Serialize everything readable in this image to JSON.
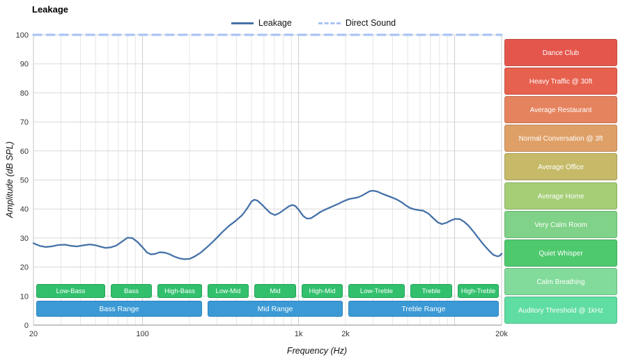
{
  "title": "Leakage",
  "legend": {
    "items": [
      {
        "label": "Leakage",
        "color": "#4572a7",
        "style": "solid"
      },
      {
        "label": "Direct Sound",
        "color": "#a9c4f5",
        "style": "dashed"
      }
    ]
  },
  "axes": {
    "x_title": "Frequency (Hz)",
    "y_title": "Amplitude (dB SPL)"
  },
  "bands": {
    "color": "#32c06d",
    "items": [
      {
        "label": "Low-Bass",
        "range_hz": [
          20,
          60
        ]
      },
      {
        "label": "Bass",
        "range_hz": [
          60,
          120
        ]
      },
      {
        "label": "High-Bass",
        "range_hz": [
          120,
          250
        ]
      },
      {
        "label": "Low-Mid",
        "range_hz": [
          250,
          500
        ]
      },
      {
        "label": "Mid",
        "range_hz": [
          500,
          1000
        ]
      },
      {
        "label": "High-Mid",
        "range_hz": [
          1000,
          2000
        ]
      },
      {
        "label": "Low-Treble",
        "range_hz": [
          2000,
          5000
        ]
      },
      {
        "label": "Treble",
        "range_hz": [
          5000,
          10000
        ]
      },
      {
        "label": "High-Treble",
        "range_hz": [
          10000,
          20000
        ]
      }
    ]
  },
  "ranges": {
    "color": "#3b9ad5",
    "items": [
      {
        "label": "Bass Range",
        "range_hz": [
          20,
          250
        ]
      },
      {
        "label": "Mid Range",
        "range_hz": [
          250,
          2000
        ]
      },
      {
        "label": "Treble Range",
        "range_hz": [
          2000,
          20000
        ]
      }
    ]
  },
  "noise_levels": {
    "items": [
      {
        "label": "Dance Club",
        "color": "#e4564c",
        "db_range": [
          90,
          100
        ]
      },
      {
        "label": "Heavy Traffic @ 30ft",
        "color": "#e7614f",
        "db_range": [
          80,
          90
        ]
      },
      {
        "label": "Average Restaurant",
        "color": "#e6835f",
        "db_range": [
          70,
          80
        ]
      },
      {
        "label": "Normal Conversation @ 3ft",
        "color": "#dfa068",
        "db_range": [
          60,
          70
        ]
      },
      {
        "label": "Average Office",
        "color": "#c6ba69",
        "db_range": [
          50,
          60
        ]
      },
      {
        "label": "Average Home",
        "color": "#a5ce77",
        "db_range": [
          40,
          50
        ]
      },
      {
        "label": "Very Calm Room",
        "color": "#7fd287",
        "db_range": [
          30,
          40
        ]
      },
      {
        "label": "Quiet Whisper",
        "color": "#4ec96e",
        "db_range": [
          20,
          30
        ]
      },
      {
        "label": "Calm Breathing",
        "color": "#82db9b",
        "db_range": [
          10,
          20
        ]
      },
      {
        "label": "Auditory Threshold @ 1kHz",
        "color": "#5fdda2",
        "db_range": [
          0,
          10
        ]
      }
    ]
  },
  "chart_data": {
    "type": "line",
    "title": "Leakage",
    "xlabel": "Frequency (Hz)",
    "ylabel": "Amplitude (dB SPL)",
    "xscale": "log",
    "xlim": [
      20,
      20000
    ],
    "ylim": [
      0,
      100
    ],
    "grid": true,
    "legend_position": "top",
    "yticks": [
      0,
      10,
      20,
      30,
      40,
      50,
      60,
      70,
      80,
      90,
      100
    ],
    "xticks": [
      {
        "value": 20,
        "label": "20"
      },
      {
        "value": 100,
        "label": "100"
      },
      {
        "value": 1000,
        "label": "1k"
      },
      {
        "value": 2000,
        "label": "2k"
      },
      {
        "value": 20000,
        "label": "20k"
      }
    ],
    "series": [
      {
        "name": "Leakage",
        "color": "#4572a7",
        "style": "solid",
        "data": [
          [
            20,
            28.2
          ],
          [
            22,
            27.3
          ],
          [
            24,
            26.9
          ],
          [
            26,
            27.1
          ],
          [
            29,
            27.6
          ],
          [
            32,
            27.7
          ],
          [
            35,
            27.3
          ],
          [
            38,
            27.1
          ],
          [
            42,
            27.5
          ],
          [
            46,
            27.8
          ],
          [
            50,
            27.5
          ],
          [
            54,
            27.0
          ],
          [
            58,
            26.6
          ],
          [
            63,
            26.8
          ],
          [
            68,
            27.4
          ],
          [
            74,
            28.8
          ],
          [
            80,
            30.1
          ],
          [
            86,
            30.0
          ],
          [
            93,
            28.6
          ],
          [
            100,
            26.8
          ],
          [
            107,
            25.0
          ],
          [
            113,
            24.4
          ],
          [
            120,
            24.5
          ],
          [
            129,
            25.1
          ],
          [
            138,
            25.0
          ],
          [
            148,
            24.5
          ],
          [
            160,
            23.6
          ],
          [
            172,
            23.0
          ],
          [
            185,
            22.7
          ],
          [
            200,
            22.8
          ],
          [
            215,
            23.6
          ],
          [
            235,
            24.9
          ],
          [
            260,
            26.9
          ],
          [
            290,
            29.3
          ],
          [
            320,
            31.7
          ],
          [
            355,
            34.0
          ],
          [
            395,
            35.9
          ],
          [
            435,
            37.9
          ],
          [
            470,
            40.3
          ],
          [
            500,
            42.6
          ],
          [
            520,
            43.2
          ],
          [
            545,
            42.9
          ],
          [
            575,
            41.8
          ],
          [
            615,
            40.2
          ],
          [
            660,
            38.6
          ],
          [
            705,
            37.9
          ],
          [
            755,
            38.6
          ],
          [
            810,
            39.8
          ],
          [
            865,
            40.9
          ],
          [
            910,
            41.4
          ],
          [
            955,
            41.0
          ],
          [
            1010,
            39.5
          ],
          [
            1070,
            37.6
          ],
          [
            1130,
            36.7
          ],
          [
            1200,
            36.8
          ],
          [
            1290,
            37.9
          ],
          [
            1390,
            39.1
          ],
          [
            1510,
            40.0
          ],
          [
            1650,
            40.9
          ],
          [
            1800,
            41.8
          ],
          [
            1950,
            42.7
          ],
          [
            2100,
            43.4
          ],
          [
            2250,
            43.7
          ],
          [
            2400,
            44.0
          ],
          [
            2550,
            44.6
          ],
          [
            2700,
            45.4
          ],
          [
            2850,
            46.1
          ],
          [
            3000,
            46.3
          ],
          [
            3200,
            46.0
          ],
          [
            3450,
            45.2
          ],
          [
            3700,
            44.6
          ],
          [
            3950,
            44.0
          ],
          [
            4250,
            43.3
          ],
          [
            4550,
            42.4
          ],
          [
            4850,
            41.3
          ],
          [
            5150,
            40.4
          ],
          [
            5500,
            39.9
          ],
          [
            5900,
            39.6
          ],
          [
            6300,
            39.4
          ],
          [
            6800,
            38.4
          ],
          [
            7300,
            36.8
          ],
          [
            7800,
            35.4
          ],
          [
            8300,
            34.8
          ],
          [
            8900,
            35.3
          ],
          [
            9500,
            36.1
          ],
          [
            10100,
            36.6
          ],
          [
            10800,
            36.5
          ],
          [
            11500,
            35.6
          ],
          [
            12300,
            34.2
          ],
          [
            13200,
            32.2
          ],
          [
            14200,
            30.0
          ],
          [
            15300,
            27.8
          ],
          [
            16500,
            25.8
          ],
          [
            17700,
            24.2
          ],
          [
            18800,
            23.7
          ],
          [
            19500,
            23.9
          ],
          [
            20000,
            24.6
          ]
        ]
      },
      {
        "name": "Direct Sound",
        "color": "#a9c4f5",
        "style": "dashed",
        "data": [
          [
            20,
            100
          ],
          [
            20000,
            100
          ]
        ]
      }
    ]
  }
}
